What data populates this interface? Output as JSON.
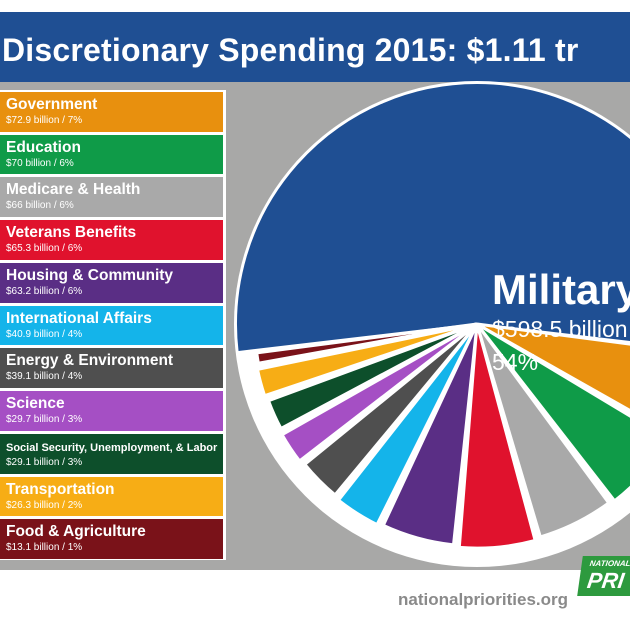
{
  "title": "Discretionary Spending 2015: $1.11 tr",
  "chart_data": {
    "type": "pie",
    "title": "Discretionary Spending 2015: $1.11 tr",
    "unit": "billion",
    "slices": [
      {
        "name": "Military",
        "value": 598.5,
        "value_label": "$598.5 billion",
        "pct_label": "54%",
        "color": "#1f4f93"
      },
      {
        "name": "Government",
        "value": 72.9,
        "label": "$72.9 billion / 7%",
        "color": "#e8900e"
      },
      {
        "name": "Education",
        "value": 70,
        "label": "$70 billion / 6%",
        "color": "#0f9b48"
      },
      {
        "name": "Medicare & Health",
        "value": 66,
        "label": "$66 billion / 6%",
        "color": "#a9a9a9"
      },
      {
        "name": "Veterans Benefits",
        "value": 65.3,
        "label": "$65.3 billion / 6%",
        "color": "#e0122d"
      },
      {
        "name": "Housing & Community",
        "value": 63.2,
        "label": "$63.2 billion / 6%",
        "color": "#5a2e85"
      },
      {
        "name": "International Affairs",
        "value": 40.9,
        "label": "$40.9 billion / 4%",
        "color": "#14b4ea"
      },
      {
        "name": "Energy & Environment",
        "value": 39.1,
        "label": "$39.1 billion / 4%",
        "color": "#4f4f4f"
      },
      {
        "name": "Science",
        "value": 29.7,
        "label": "$29.7 billion / 3%",
        "color": "#a54fc4"
      },
      {
        "name": "Social Security, Unemployment, & Labor",
        "value": 29.1,
        "label": "$29.1 billion / 3%",
        "color": "#0d4f2b"
      },
      {
        "name": "Transportation",
        "value": 26.3,
        "label": "$26.3 billion / 2%",
        "color": "#f7ad15"
      },
      {
        "name": "Food & Agriculture",
        "value": 13.1,
        "label": "$13.1 billion / 1%",
        "color": "#7a1219"
      }
    ]
  },
  "footer": {
    "site": "nationalpriorities.org",
    "logo_top": "NATIONAL",
    "logo_main": "PRI"
  }
}
